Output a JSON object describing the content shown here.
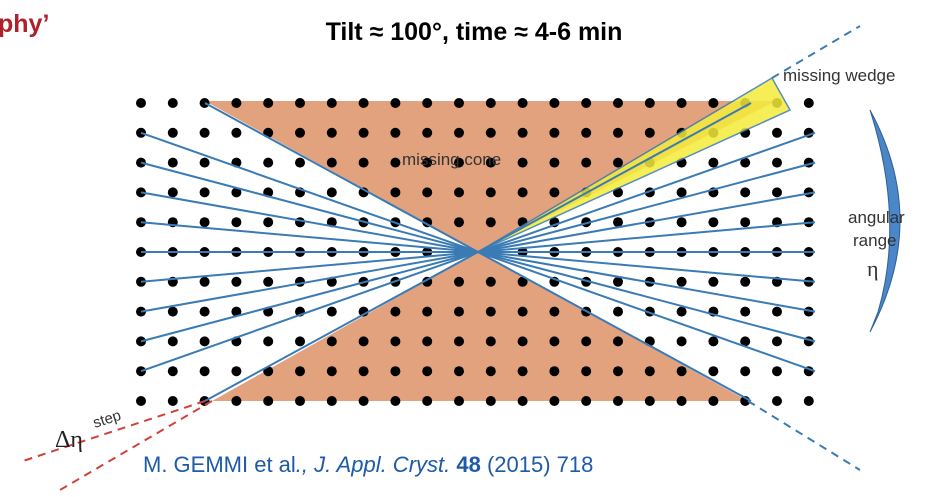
{
  "header": {
    "title_fragment": "phy’",
    "subtitle": "Tilt ≈ 100°, time ≈ 4-6 min"
  },
  "labels": {
    "missing_wedge": "missing wedge",
    "missing_cone": "missing cone",
    "angular": "angular",
    "range": "range",
    "eta": "η",
    "delta_eta": "Δη",
    "step": "step"
  },
  "citation": {
    "authors": "M. GEMMI et al",
    "sep": "., ",
    "journal": "J. Appl. Cryst.",
    "volume": "48",
    "rest": " (2015) 718"
  }
}
